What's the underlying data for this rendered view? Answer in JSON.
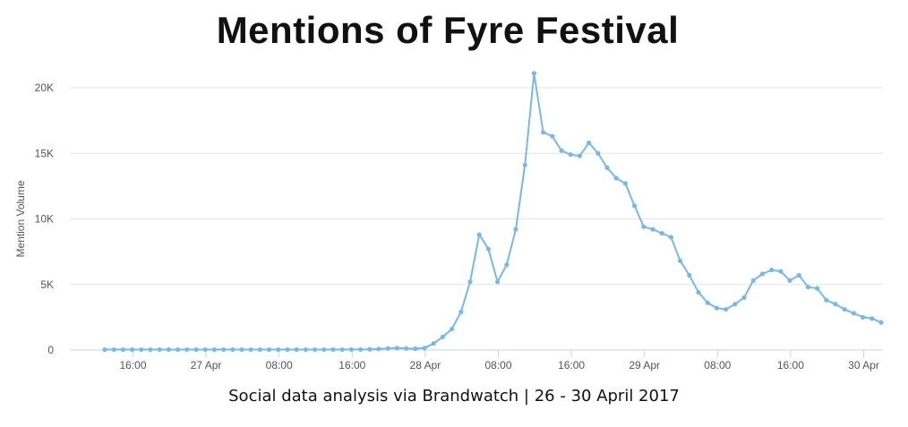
{
  "title": "Mentions of Fyre Festival",
  "caption": "Social data analysis via Brandwatch | 26 - 30 April 2017",
  "colors": {
    "line": "#7ab8e3",
    "grid": "#e6e6e6",
    "axis": "#c8d2e0"
  },
  "chart_data": {
    "type": "line",
    "ylabel": "Mention Volume",
    "ylim": [
      0,
      20000
    ],
    "yticks": [
      0,
      5000,
      10000,
      15000,
      20000
    ],
    "ytick_labels": [
      "0",
      "5K",
      "10K",
      "15K",
      "20K"
    ],
    "xlim": [
      "26 Apr 11:00",
      "30 Apr 01:00"
    ],
    "xtick_labels": [
      "16:00",
      "27 Apr",
      "08:00",
      "16:00",
      "28 Apr",
      "08:00",
      "16:00",
      "29 Apr",
      "08:00",
      "16:00",
      "30 Apr"
    ],
    "grid": true,
    "series": [
      {
        "x_start": "26 Apr 13:00",
        "interval": "1 hour",
        "values": [
          30,
          30,
          30,
          30,
          30,
          30,
          30,
          30,
          30,
          30,
          30,
          30,
          30,
          30,
          30,
          30,
          30,
          30,
          30,
          30,
          30,
          30,
          30,
          30,
          30,
          30,
          30,
          40,
          40,
          50,
          80,
          120,
          150,
          120,
          100,
          150,
          500,
          1000,
          1600,
          2900,
          5200,
          8800,
          7700,
          5200,
          6500,
          9200,
          14100,
          21100,
          16600,
          16300,
          15200,
          14900,
          14800,
          15800,
          15000,
          13900,
          13100,
          12700,
          11000,
          9400,
          9200,
          8900,
          8600,
          6800,
          5700,
          4400,
          3600,
          3200,
          3100,
          3500,
          4000,
          5300,
          5800,
          6100,
          6000,
          5300,
          5700,
          4800,
          4700,
          3800,
          3500,
          3100,
          2800,
          2500,
          2400,
          2100
        ]
      }
    ]
  }
}
